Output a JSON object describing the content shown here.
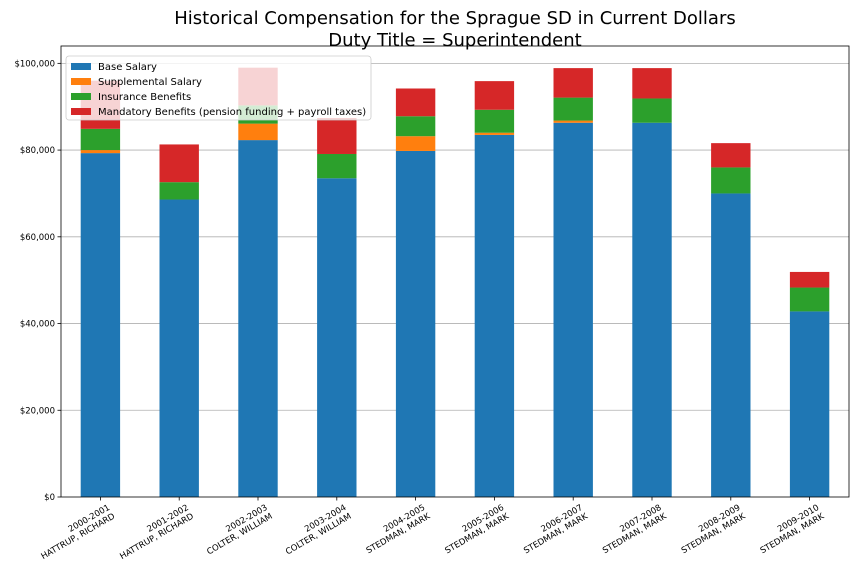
{
  "chart_data": {
    "type": "bar",
    "stacked": true,
    "title": [
      "Historical Compensation for the Sprague SD in Current Dollars",
      "Duty Title = Superintendent"
    ],
    "xlabel": "",
    "ylabel": "",
    "ylim": [
      0,
      104000
    ],
    "y_ticks": [
      0,
      20000,
      40000,
      60000,
      80000,
      100000
    ],
    "y_tick_labels": [
      "$0",
      "$20,000",
      "$40,000",
      "$60,000",
      "$80,000",
      "$100,000"
    ],
    "grid": "horizontal",
    "legend_position": "top-left",
    "categories": [
      [
        "2000-2001",
        "HATTRUP, RICHARD"
      ],
      [
        "2001-2002",
        "HATTRUP, RICHARD"
      ],
      [
        "2002-2003",
        "COLTER, WILLIAM"
      ],
      [
        "2003-2004",
        "COLTER, WILLIAM"
      ],
      [
        "2004-2005",
        "STEDMAN, MARK"
      ],
      [
        "2005-2006",
        "STEDMAN, MARK"
      ],
      [
        "2006-2007",
        "STEDMAN, MARK"
      ],
      [
        "2007-2008",
        "STEDMAN, MARK"
      ],
      [
        "2008-2009",
        "STEDMAN, MARK"
      ],
      [
        "2009-2010",
        "STEDMAN, MARK"
      ]
    ],
    "series": [
      {
        "name": "Base Salary",
        "color": "#1f77b4",
        "values": [
          79300,
          68600,
          82300,
          73500,
          79800,
          83500,
          86300,
          86300,
          70000,
          42800
        ]
      },
      {
        "name": "Supplemental Salary",
        "color": "#ff7f0e",
        "values": [
          700,
          0,
          3800,
          0,
          3400,
          500,
          500,
          0,
          0,
          0
        ]
      },
      {
        "name": "Insurance Benefits",
        "color": "#2ca02c",
        "values": [
          4900,
          4000,
          4200,
          5600,
          4600,
          5300,
          5300,
          5600,
          6000,
          5500
        ]
      },
      {
        "name": "Mandatory Benefits (pension funding + payroll taxes)",
        "color": "#d62728",
        "values": [
          11100,
          8700,
          8700,
          8300,
          6400,
          6600,
          6800,
          7000,
          5600,
          3600
        ]
      }
    ]
  }
}
